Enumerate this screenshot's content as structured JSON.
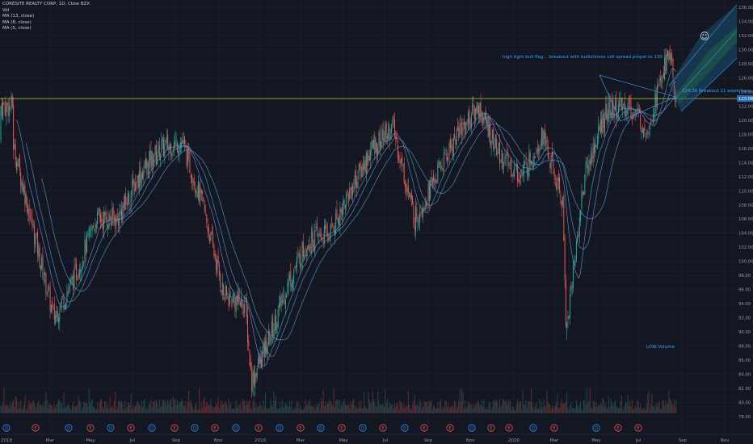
{
  "legend": {
    "title": "CORESITE REALTY CORP, 1D, Cboe BZX",
    "volume": "Vol",
    "ma1": "MA (13, close)",
    "ma2": "MA (8, close)",
    "ma3": "MA (5, close)"
  },
  "annotations": {
    "bull_flag": "high tight bull flag... breakout with bullishness cell spread propel to 130",
    "breakout": "124.36 Breakout 11 week base",
    "low_volume": "LOW Volume",
    "smiley": "☺"
  },
  "price_tag": "123.06",
  "colors": {
    "background": "#131722",
    "up": "#26a69a",
    "down": "#ef5350",
    "ma": "#5b9bd5",
    "hline": "#c6c34a",
    "annotation": "#2aa7ff",
    "channel": "#2e86c1",
    "price_tag_bg": "#2a6fb5"
  },
  "event_markers": [
    "D",
    "E",
    "D",
    "E",
    "D",
    "E",
    "D",
    "E",
    "D",
    "E",
    "D",
    "E",
    "D",
    "E",
    "D",
    "E",
    "D",
    "E",
    "D",
    "E",
    "E",
    "D",
    "E",
    "E",
    "D",
    "E",
    "D",
    "E",
    "E"
  ],
  "chart_data": {
    "type": "candlestick",
    "title": "CORESITE REALTY CORP, 1D, Cboe BZX",
    "x_tick_labels": [
      "2018",
      "Mar",
      "May",
      "Jul",
      "Sep",
      "Nov",
      "2019",
      "Mar",
      "May",
      "Jul",
      "Sep",
      "Nov",
      "2020",
      "Mar",
      "May",
      "Jul",
      "Sep",
      "Nov"
    ],
    "y_tick_labels": [
      "78.00",
      "80.00",
      "82.00",
      "84.00",
      "86.00",
      "88.00",
      "90.00",
      "92.00",
      "94.00",
      "96.00",
      "98.00",
      "100.00",
      "102.00",
      "104.00",
      "106.00",
      "108.00",
      "110.00",
      "112.00",
      "114.00",
      "116.00",
      "118.00",
      "120.00",
      "122.00",
      "124.00",
      "126.00",
      "128.00",
      "130.00",
      "132.00",
      "134.00",
      "136.00"
    ],
    "ylim": [
      78,
      136
    ],
    "y_axis_position": "right",
    "grid": true,
    "horizontal_line": 123.06,
    "price_path": {
      "description_points": [
        {
          "x": "2018-01",
          "y": 117
        },
        {
          "x": "2018-02",
          "y": 104
        },
        {
          "x": "2018-03",
          "y": 92
        },
        {
          "x": "2018-04",
          "y": 98
        },
        {
          "x": "2018-05",
          "y": 106
        },
        {
          "x": "2018-06",
          "y": 106
        },
        {
          "x": "2018-07",
          "y": 112
        },
        {
          "x": "2018-08",
          "y": 116
        },
        {
          "x": "2018-09",
          "y": 117
        },
        {
          "x": "2018-10",
          "y": 108
        },
        {
          "x": "2018-11",
          "y": 95
        },
        {
          "x": "2018-12",
          "y": 94
        },
        {
          "x": "2018-12-24",
          "y": 83
        },
        {
          "x": "2019-01",
          "y": 88
        },
        {
          "x": "2019-02",
          "y": 97
        },
        {
          "x": "2019-03",
          "y": 103
        },
        {
          "x": "2019-04",
          "y": 104
        },
        {
          "x": "2019-05",
          "y": 110
        },
        {
          "x": "2019-06",
          "y": 116
        },
        {
          "x": "2019-07",
          "y": 119
        },
        {
          "x": "2019-08",
          "y": 106
        },
        {
          "x": "2019-09",
          "y": 112
        },
        {
          "x": "2019-10",
          "y": 118
        },
        {
          "x": "2019-11",
          "y": 122
        },
        {
          "x": "2019-12",
          "y": 115
        },
        {
          "x": "2020-01",
          "y": 112
        },
        {
          "x": "2020-02",
          "y": 118
        },
        {
          "x": "2020-03",
          "y": 108
        },
        {
          "x": "2020-03-20",
          "y": 90
        },
        {
          "x": "2020-04",
          "y": 112
        },
        {
          "x": "2020-05",
          "y": 121
        },
        {
          "x": "2020-06",
          "y": 122
        },
        {
          "x": "2020-07",
          "y": 119
        },
        {
          "x": "2020-08",
          "y": 130
        },
        {
          "x": "2020-08-25",
          "y": 122
        }
      ]
    },
    "series": [
      {
        "name": "MA (13, close)"
      },
      {
        "name": "MA (8, close)"
      },
      {
        "name": "MA (5, close)"
      }
    ]
  }
}
